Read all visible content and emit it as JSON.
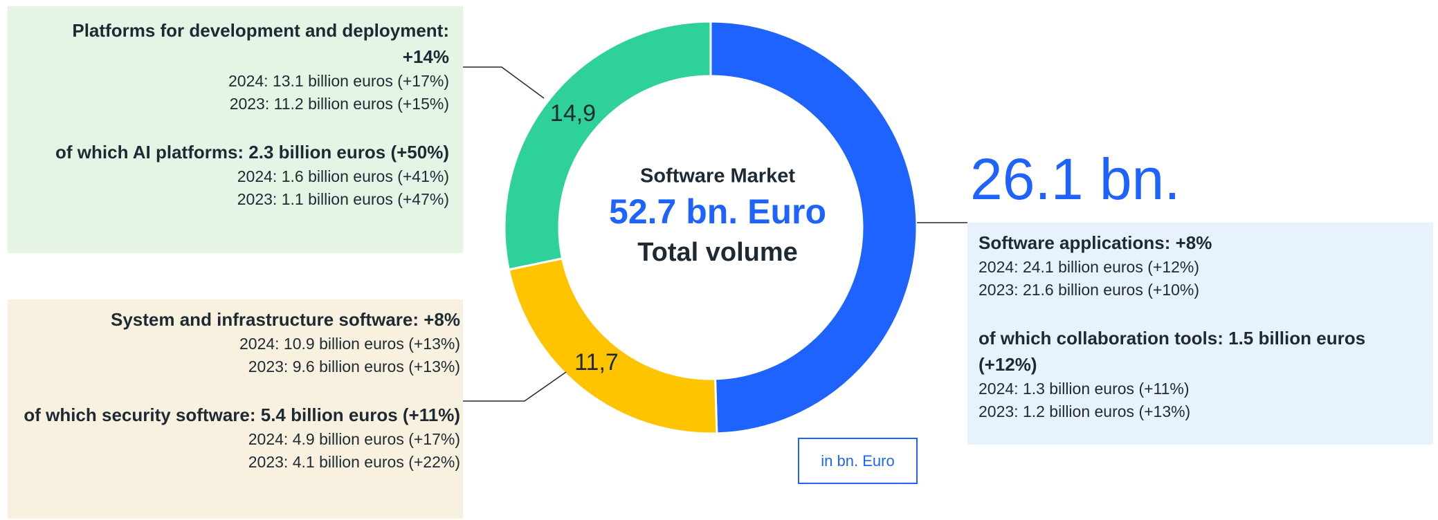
{
  "chart_data": {
    "type": "donut",
    "title": "Software Market",
    "center_value": "52.7 bn. Euro",
    "center_label": "Total volume",
    "unit_note": "in bn. Euro",
    "categories": [
      "Software applications: +8%",
      "System and infrastructure software: +8%",
      "Platforms for development and deployment: +14%"
    ],
    "values": [
      26.1,
      11.7,
      14.9
    ],
    "value_labels": [
      "26.1 bn.",
      "11,7",
      "14,9"
    ],
    "colors": [
      "#1f63ff",
      "#ffc400",
      "#2ed197"
    ],
    "details": [
      {
        "lines": [
          "2024: 24.1 billion euros (+12%)",
          "2023: 21.6 billion euros (+10%)"
        ],
        "sub": "of which collaboration tools: 1.5 billion euros (+12%)",
        "sub_lines": [
          "2024: 1.3 billion euros (+11%)",
          "2023: 1.2 billion euros (+13%)"
        ]
      },
      {
        "lines": [
          "2024: 10.9 billion euros (+13%)",
          "2023: 9.6 billion euros (+13%)"
        ],
        "sub": "of which security software: 5.4 billion euros (+11%)",
        "sub_lines": [
          "2024: 4.9 billion euros (+17%)",
          "2023: 4.1 billion euros (+22%)"
        ]
      },
      {
        "lines": [
          "2024: 13.1 billion euros (+17%)",
          "2023: 11.2 billion euros (+15%)"
        ],
        "sub": "of which AI platforms: 2.3 billion euros (+50%)",
        "sub_lines": [
          "2024: 1.6 billion euros (+41%)",
          "2023: 1.1 billion euros (+47%)"
        ]
      }
    ]
  }
}
